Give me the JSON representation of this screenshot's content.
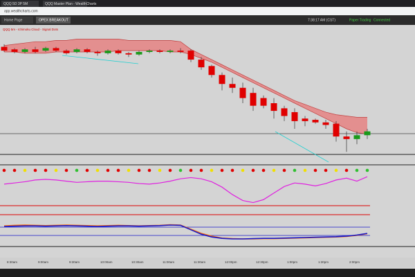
{
  "browser": {
    "tab_title": "QQQ 5D 3P 5M",
    "tab2": "QQQ Master Plan - WealthCharts",
    "address": "app.wealthcharts.com"
  },
  "app": {
    "tabs": [
      "Home Page",
      "OPEX BREAKOUT"
    ],
    "clock": "7:38:17 AM (CST)",
    "mode": "Paper Trading",
    "status": "Connected",
    "legend": "QQQ 5m - Ichimoku Cloud - Signal Dots"
  },
  "price_pane": {
    "ylim": [
      0,
      100
    ],
    "up_color": "#1a9a1a",
    "down_color": "#e00000",
    "cloud_color": "#e87878",
    "candles": [
      {
        "open": 84,
        "high": 86,
        "low": 80,
        "close": 81
      },
      {
        "open": 82,
        "high": 83,
        "low": 79,
        "close": 80
      },
      {
        "open": 80,
        "high": 83,
        "low": 79,
        "close": 82
      },
      {
        "open": 82,
        "high": 84,
        "low": 79,
        "close": 80
      },
      {
        "open": 81,
        "high": 84,
        "low": 80,
        "close": 83
      },
      {
        "open": 83,
        "high": 84,
        "low": 80,
        "close": 81
      },
      {
        "open": 81,
        "high": 82,
        "low": 78,
        "close": 79
      },
      {
        "open": 80,
        "high": 83,
        "low": 79,
        "close": 82
      },
      {
        "open": 82,
        "high": 83,
        "low": 79,
        "close": 80
      },
      {
        "open": 80,
        "high": 81,
        "low": 77,
        "close": 79
      },
      {
        "open": 79,
        "high": 82,
        "low": 78,
        "close": 81
      },
      {
        "open": 81,
        "high": 82,
        "low": 78,
        "close": 79
      },
      {
        "open": 79,
        "high": 80,
        "low": 76,
        "close": 78
      },
      {
        "open": 78,
        "high": 81,
        "low": 77,
        "close": 80
      },
      {
        "open": 80,
        "high": 82,
        "low": 79,
        "close": 81
      },
      {
        "open": 81,
        "high": 82,
        "low": 79,
        "close": 80
      },
      {
        "open": 80,
        "high": 82,
        "low": 79,
        "close": 81
      },
      {
        "open": 81,
        "high": 83,
        "low": 79,
        "close": 80
      },
      {
        "open": 81,
        "high": 82,
        "low": 72,
        "close": 74
      },
      {
        "open": 74,
        "high": 76,
        "low": 66,
        "close": 68
      },
      {
        "open": 69,
        "high": 70,
        "low": 60,
        "close": 62
      },
      {
        "open": 62,
        "high": 64,
        "low": 50,
        "close": 55
      },
      {
        "open": 55,
        "high": 60,
        "low": 48,
        "close": 52
      },
      {
        "open": 52,
        "high": 56,
        "low": 40,
        "close": 44
      },
      {
        "open": 48,
        "high": 52,
        "low": 34,
        "close": 38
      },
      {
        "open": 44,
        "high": 46,
        "low": 36,
        "close": 38
      },
      {
        "open": 40,
        "high": 44,
        "low": 28,
        "close": 34
      },
      {
        "open": 36,
        "high": 38,
        "low": 26,
        "close": 30
      },
      {
        "open": 33,
        "high": 36,
        "low": 20,
        "close": 26
      },
      {
        "open": 28,
        "high": 30,
        "low": 22,
        "close": 26
      },
      {
        "open": 27,
        "high": 28,
        "low": 24,
        "close": 25
      },
      {
        "open": 25,
        "high": 27,
        "low": 20,
        "close": 23
      },
      {
        "open": 24,
        "high": 26,
        "low": 10,
        "close": 14
      },
      {
        "open": 14,
        "high": 18,
        "low": 2,
        "close": 12
      },
      {
        "open": 12,
        "high": 18,
        "low": 8,
        "close": 15
      },
      {
        "open": 15,
        "high": 20,
        "low": 12,
        "close": 18
      }
    ],
    "cloud_upper": [
      85,
      86,
      87,
      88,
      88,
      89,
      89,
      90,
      90,
      90,
      90,
      90,
      89,
      89,
      89,
      89,
      89,
      88,
      82,
      78,
      74,
      70,
      66,
      62,
      58,
      54,
      50,
      46,
      42,
      39,
      36,
      33,
      31,
      30,
      29,
      29
    ],
    "cloud_lower": [
      80,
      80,
      79,
      79,
      79,
      80,
      80,
      80,
      80,
      80,
      80,
      81,
      81,
      81,
      81,
      81,
      80,
      80,
      78,
      75,
      72,
      68,
      64,
      60,
      56,
      52,
      48,
      44,
      40,
      36,
      32,
      28,
      24,
      20,
      17,
      16
    ]
  },
  "signal_dots": [
    "#e00000",
    "#e00000",
    "#f0e000",
    "#e00000",
    "#e00000",
    "#f0e000",
    "#e00000",
    "#30c030",
    "#e00000",
    "#f0e000",
    "#e00000",
    "#e00000",
    "#f0e000",
    "#e00000",
    "#e00000",
    "#f0e000",
    "#e00000",
    "#30c030",
    "#e00000",
    "#e00000",
    "#f0e000",
    "#e00000",
    "#e00000",
    "#f0e000",
    "#e00000",
    "#e00000",
    "#f0e000",
    "#e00000",
    "#30c030",
    "#f0e000",
    "#e00000",
    "#e00000",
    "#f0e000",
    "#e00000",
    "#30c030",
    "#30c030"
  ],
  "oscillator": {
    "ylim": [
      0,
      100
    ],
    "color": "#e020e0",
    "values": [
      70,
      74,
      78,
      84,
      86,
      84,
      80,
      76,
      78,
      80,
      80,
      78,
      76,
      72,
      70,
      74,
      80,
      88,
      92,
      88,
      78,
      60,
      35,
      15,
      8,
      18,
      40,
      62,
      74,
      70,
      64,
      72,
      84,
      90,
      80,
      95
    ]
  },
  "bottom_pane": {
    "ylim": [
      0,
      100
    ],
    "series": [
      {
        "color": "#ff6a00",
        "values": [
          72,
          74,
          75,
          74,
          73,
          74,
          75,
          74,
          73,
          72,
          73,
          74,
          73,
          72,
          73,
          74,
          76,
          75,
          60,
          45,
          35,
          28,
          26,
          25,
          25,
          26,
          26,
          27,
          28,
          29,
          30,
          31,
          32,
          34,
          38,
          44
        ]
      },
      {
        "color": "#1818c8",
        "values": [
          70,
          71,
          72,
          72,
          71,
          72,
          73,
          72,
          71,
          70,
          71,
          72,
          72,
          71,
          72,
          73,
          75,
          74,
          58,
          42,
          32,
          27,
          25,
          25,
          26,
          27,
          27,
          28,
          29,
          30,
          31,
          32,
          33,
          35,
          39,
          45
        ]
      }
    ]
  },
  "time_labels": [
    "8:30am",
    "9:00am",
    "9:30am",
    "10:00am",
    "10:30am",
    "11:00am",
    "11:30am",
    "12:00pm",
    "12:30pm",
    "1:00pm",
    "1:30pm",
    "2:00pm"
  ]
}
